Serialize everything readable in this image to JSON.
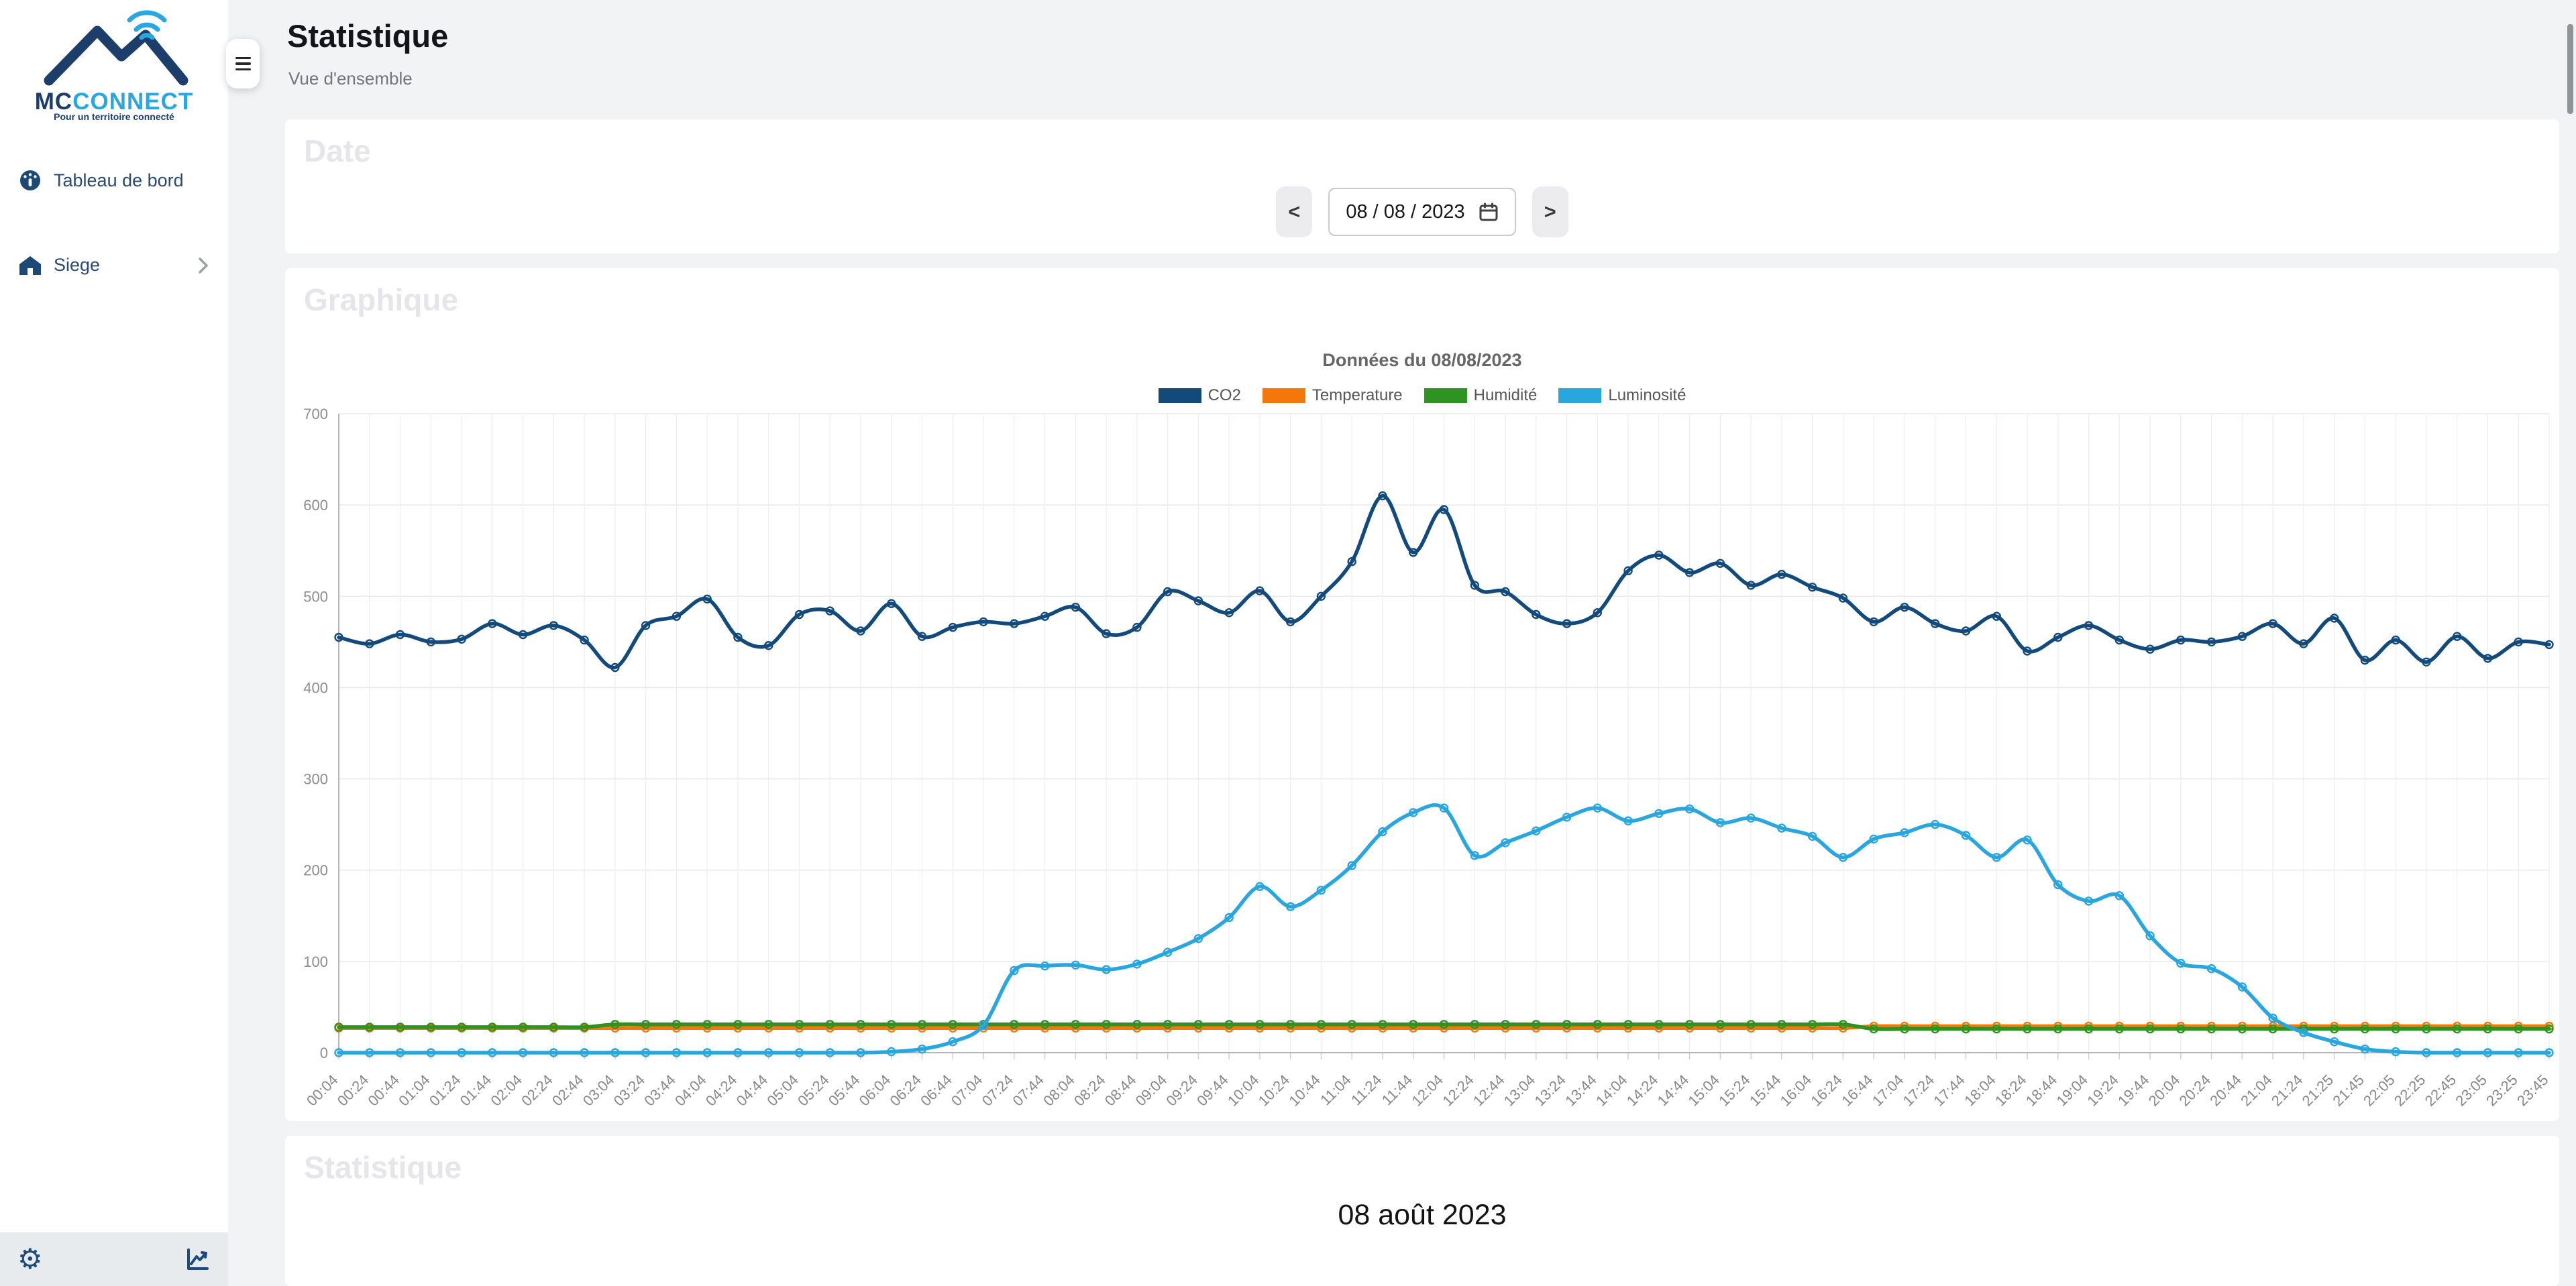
{
  "theme": {
    "navy": "#1d3d6b",
    "sidebar_text": "#2a4a72",
    "accent_blue": "#2aa7e0",
    "card_bg": "#ffffff",
    "page_bg": "#f2f3f5",
    "watermark": "#e6e6ea"
  },
  "icons": {
    "menu": "hamburger-bars",
    "gauge": "dashboard-gauge",
    "home": "house",
    "chevron": "chevron-right",
    "gear": "⚙",
    "chart": "line-chart",
    "calendar": "calendar"
  },
  "sidebar": {
    "logo": {
      "brand_mc": "MC",
      "brand_connect": "CONNECT",
      "tagline": "Pour un territoire connecté"
    },
    "items": [
      {
        "label": "Tableau de bord"
      },
      {
        "label": "Siege"
      }
    ]
  },
  "header": {
    "title": "Statistique",
    "subtitle": "Vue d'ensemble"
  },
  "date_card": {
    "heading": "Date",
    "prev_label": "<",
    "next_label": ">",
    "value": "08 / 08 / 2023"
  },
  "chart_card": {
    "heading": "Graphique"
  },
  "stats_card": {
    "heading": "Statistique",
    "date_label": "08 août 2023"
  },
  "chart_data": {
    "type": "line",
    "title": "Données du 08/08/2023",
    "xlabel": "",
    "ylabel": "",
    "ylim": [
      0,
      700
    ],
    "yticks": [
      0,
      100,
      200,
      300,
      400,
      500,
      600,
      700
    ],
    "grid": true,
    "legend_position": "top",
    "marker": "circle",
    "x": [
      "00:04",
      "00:24",
      "00:44",
      "01:04",
      "01:24",
      "01:44",
      "02:04",
      "02:24",
      "02:44",
      "03:04",
      "03:24",
      "03:44",
      "04:04",
      "04:24",
      "04:44",
      "05:04",
      "05:24",
      "05:44",
      "06:04",
      "06:24",
      "06:44",
      "07:04",
      "07:24",
      "07:44",
      "08:04",
      "08:24",
      "08:44",
      "09:04",
      "09:24",
      "09:44",
      "10:04",
      "10:24",
      "10:44",
      "11:04",
      "11:24",
      "11:44",
      "12:04",
      "12:24",
      "12:44",
      "13:04",
      "13:24",
      "13:44",
      "14:04",
      "14:24",
      "14:44",
      "15:04",
      "15:24",
      "15:44",
      "16:04",
      "16:24",
      "16:44",
      "17:04",
      "17:24",
      "17:44",
      "18:04",
      "18:24",
      "18:44",
      "19:04",
      "19:24",
      "19:44",
      "20:04",
      "20:24",
      "20:44",
      "21:04",
      "21:24",
      "21:25",
      "21:45",
      "22:05",
      "22:25",
      "22:45",
      "23:05",
      "23:25",
      "23:45"
    ],
    "series": [
      {
        "name": "CO2",
        "color": "#124a7c",
        "values": [
          455,
          448,
          458,
          450,
          453,
          470,
          458,
          468,
          452,
          422,
          468,
          478,
          497,
          455,
          446,
          480,
          484,
          462,
          492,
          456,
          466,
          472,
          470,
          478,
          488,
          459,
          466,
          505,
          495,
          482,
          506,
          472,
          500,
          538,
          610,
          548,
          595,
          512,
          505,
          480,
          470,
          482,
          528,
          545,
          526,
          536,
          512,
          524,
          510,
          498,
          472,
          488,
          470,
          462,
          478,
          440,
          455,
          468,
          452,
          442,
          452,
          450,
          456,
          470,
          448,
          476,
          430,
          452,
          428,
          456,
          432,
          450,
          447
        ]
      },
      {
        "name": "Temperature",
        "color": "#f5770a",
        "values": [
          27,
          27,
          27,
          27,
          27,
          27,
          27,
          27,
          27,
          27,
          27,
          27,
          27,
          27,
          27,
          27,
          27,
          27,
          27,
          27,
          27,
          27,
          27,
          27,
          27,
          27,
          27,
          27,
          27,
          27,
          27,
          27,
          27,
          27,
          27,
          27,
          27,
          27,
          27,
          27,
          27,
          27,
          27,
          27,
          27,
          27,
          27,
          27,
          27,
          27,
          29,
          29,
          29,
          29,
          29,
          29,
          29,
          29,
          29,
          29,
          29,
          29,
          29,
          29,
          29,
          29,
          29,
          29,
          29,
          29,
          29,
          29,
          29
        ]
      },
      {
        "name": "Humidité",
        "color": "#2e9421",
        "values": [
          28,
          28,
          28,
          28,
          28,
          28,
          28,
          28,
          28,
          31,
          31,
          31,
          31,
          31,
          31,
          31,
          31,
          31,
          31,
          31,
          31,
          31,
          31,
          31,
          31,
          31,
          31,
          31,
          31,
          31,
          31,
          31,
          31,
          31,
          31,
          31,
          31,
          31,
          31,
          31,
          31,
          31,
          31,
          31,
          31,
          31,
          31,
          31,
          31,
          31,
          26,
          26,
          26,
          26,
          26,
          26,
          26,
          26,
          26,
          26,
          26,
          26,
          26,
          26,
          26,
          26,
          26,
          26,
          26,
          26,
          26,
          26,
          26
        ]
      },
      {
        "name": "Luminosité",
        "color": "#29a6dd",
        "values": [
          0,
          0,
          0,
          0,
          0,
          0,
          0,
          0,
          0,
          0,
          0,
          0,
          0,
          0,
          0,
          0,
          0,
          0,
          1,
          4,
          12,
          30,
          90,
          95,
          96,
          91,
          97,
          110,
          125,
          148,
          182,
          160,
          178,
          205,
          242,
          263,
          268,
          216,
          230,
          243,
          258,
          268,
          254,
          262,
          267,
          252,
          257,
          246,
          237,
          214,
          234,
          241,
          250,
          238,
          214,
          233,
          184,
          166,
          172,
          128,
          98,
          92,
          72,
          38,
          22,
          12,
          4,
          1,
          0,
          0,
          0,
          0,
          0
        ]
      }
    ]
  }
}
